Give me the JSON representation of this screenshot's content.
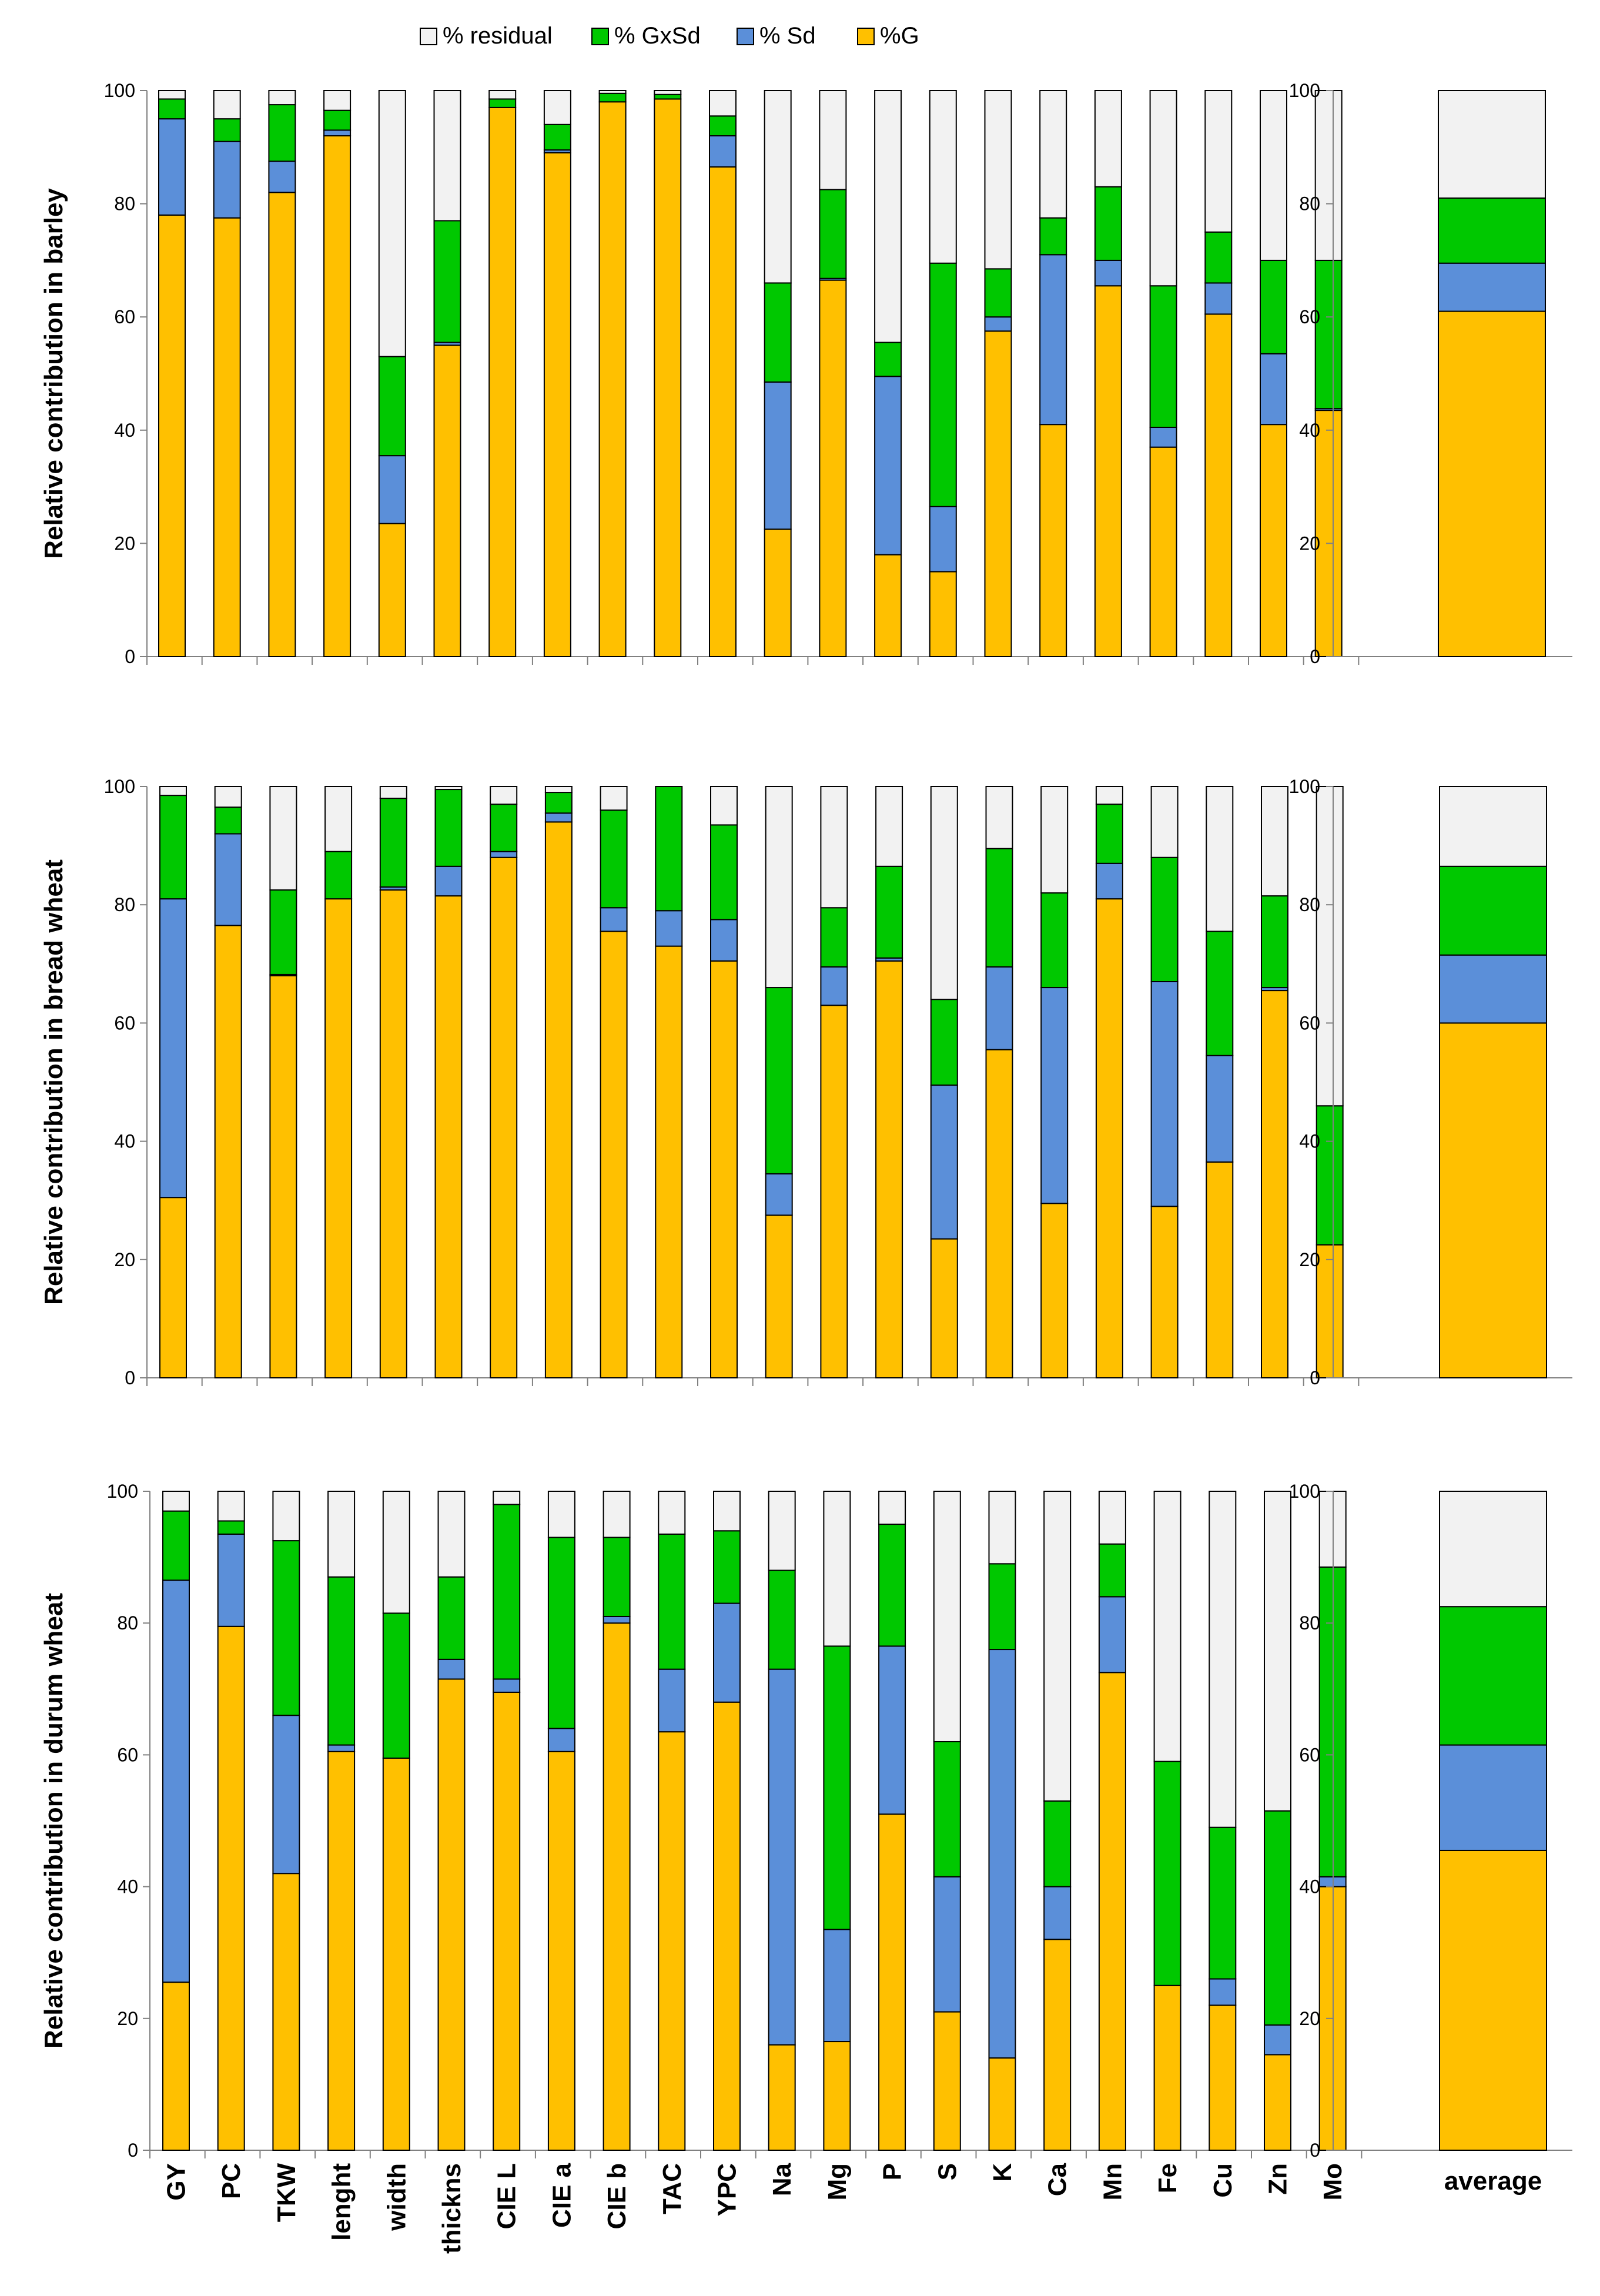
{
  "legend": [
    {
      "key": "residual",
      "label": "% residual",
      "color": "#F2F2F2"
    },
    {
      "key": "gxsd",
      "label": "% GxSd",
      "color": "#00C800"
    },
    {
      "key": "sd",
      "label": "% Sd",
      "color": "#5B8FD9"
    },
    {
      "key": "g",
      "label": "%G",
      "color": "#FFC000"
    }
  ],
  "categories": [
    "GY",
    "PC",
    "TKW",
    "lenght",
    "width",
    "thickns",
    "CIE L",
    "CIE a",
    "CIE b",
    "TAC",
    "YPC",
    "Na",
    "Mg",
    "P",
    "S",
    "K",
    "Ca",
    "Mn",
    "Fe",
    "Cu",
    "Zn",
    "Mo"
  ],
  "average_label": "average",
  "y_ticks": [
    "0",
    "20",
    "40",
    "60",
    "80",
    "100"
  ],
  "chart_data": [
    {
      "type": "bar",
      "stacked": true,
      "title": "",
      "ylabel": "Relative contribution in barley",
      "ylim": [
        0,
        100
      ],
      "categories": [
        "GY",
        "PC",
        "TKW",
        "lenght",
        "width",
        "thickns",
        "CIE L",
        "CIE a",
        "CIE b",
        "TAC",
        "YPC",
        "Na",
        "Mg",
        "P",
        "S",
        "K",
        "Ca",
        "Mn",
        "Fe",
        "Cu",
        "Zn",
        "Mo"
      ],
      "series": [
        {
          "name": "%G",
          "values": [
            78,
            77.5,
            82,
            92,
            23.5,
            55,
            97,
            89,
            98,
            98.5,
            86.5,
            22.5,
            66.5,
            18,
            15,
            57.5,
            41,
            65.5,
            37,
            60.5,
            41,
            43.5
          ]
        },
        {
          "name": "% Sd",
          "values": [
            17,
            13.5,
            5.5,
            1,
            12,
            0.5,
            0,
            0.5,
            0,
            0,
            5.5,
            26,
            0.3,
            31.5,
            11.5,
            2.5,
            30,
            4.5,
            3.5,
            5.5,
            12.5,
            0.3
          ]
        },
        {
          "name": "% GxSd",
          "values": [
            3.5,
            4,
            10,
            3.5,
            17.5,
            21.5,
            1.5,
            4.5,
            1.5,
            0.8,
            3.5,
            17.5,
            15.7,
            6,
            43,
            8.5,
            6.5,
            13,
            25,
            9,
            16.5,
            26.2
          ]
        },
        {
          "name": "% residual",
          "values": [
            1.5,
            5,
            2.5,
            3.5,
            47,
            23,
            1.5,
            6,
            0.5,
            0.7,
            4.5,
            34,
            17.5,
            44.5,
            30.5,
            31.5,
            22.5,
            17,
            34.5,
            25,
            30,
            30
          ]
        }
      ],
      "average": {
        "%G": 61,
        "% Sd": 8.5,
        "% GxSd": 11.5,
        "% residual": 19
      }
    },
    {
      "type": "bar",
      "stacked": true,
      "title": "",
      "ylabel": "Relative contribution in bread wheat",
      "ylim": [
        0,
        100
      ],
      "categories": [
        "GY",
        "PC",
        "TKW",
        "lenght",
        "width",
        "thickns",
        "CIE L",
        "CIE a",
        "CIE b",
        "TAC",
        "YPC",
        "Na",
        "Mg",
        "P",
        "S",
        "K",
        "Ca",
        "Mn",
        "Fe",
        "Cu",
        "Zn",
        "Mo"
      ],
      "series": [
        {
          "name": "%G",
          "values": [
            30.5,
            76.5,
            68,
            81,
            82.5,
            81.5,
            88,
            94,
            75.5,
            73,
            70.5,
            27.5,
            63,
            70.5,
            23.5,
            55.5,
            29.5,
            81,
            29,
            36.5,
            65.5,
            22.5
          ]
        },
        {
          "name": "% Sd",
          "values": [
            50.5,
            15.5,
            0.2,
            0,
            0.5,
            5,
            1,
            1.5,
            4,
            6,
            7,
            7,
            6.5,
            0.5,
            26,
            14,
            36.5,
            6,
            38,
            18,
            0.5,
            0
          ]
        },
        {
          "name": "% GxSd",
          "values": [
            17.5,
            4.5,
            14.3,
            8,
            15,
            13,
            8,
            3.5,
            16.5,
            21,
            16,
            31.5,
            10,
            15.5,
            14.5,
            20,
            16,
            10,
            21,
            21,
            15.5,
            23.5
          ]
        },
        {
          "name": "% residual",
          "values": [
            1.5,
            3.5,
            17.5,
            11,
            2,
            0.5,
            3,
            1,
            4,
            0,
            6.5,
            34,
            20.5,
            13.5,
            36,
            10.5,
            18,
            3,
            12,
            24.5,
            18.5,
            54
          ]
        }
      ],
      "average": {
        "%G": 60,
        "% Sd": 11.5,
        "% GxSd": 15,
        "% residual": 13.5
      }
    },
    {
      "type": "bar",
      "stacked": true,
      "title": "",
      "ylabel": "Relative contribution in durum wheat",
      "ylim": [
        0,
        100
      ],
      "categories": [
        "GY",
        "PC",
        "TKW",
        "lenght",
        "width",
        "thickns",
        "CIE L",
        "CIE a",
        "CIE b",
        "TAC",
        "YPC",
        "Na",
        "Mg",
        "P",
        "S",
        "K",
        "Ca",
        "Mn",
        "Fe",
        "Cu",
        "Zn",
        "Mo"
      ],
      "series": [
        {
          "name": "%G",
          "values": [
            25.5,
            79.5,
            42,
            60.5,
            59.5,
            71.5,
            69.5,
            60.5,
            80,
            63.5,
            68,
            16,
            16.5,
            51,
            21,
            14,
            32,
            72.5,
            25,
            22,
            14.5,
            40
          ]
        },
        {
          "name": "% Sd",
          "values": [
            61,
            14,
            24,
            1,
            0,
            3,
            2,
            3.5,
            1,
            9.5,
            15,
            57,
            17,
            25.5,
            20.5,
            62,
            8,
            11.5,
            0,
            4,
            4.5,
            1.5
          ]
        },
        {
          "name": "% GxSd",
          "values": [
            10.5,
            2,
            26.5,
            25.5,
            22,
            12.5,
            26.5,
            29,
            12,
            20.5,
            11,
            15,
            43,
            18.5,
            20.5,
            13,
            13,
            8,
            34,
            23,
            32.5,
            47
          ]
        },
        {
          "name": "% residual",
          "values": [
            3,
            4.5,
            7.5,
            13,
            18.5,
            13,
            2,
            7,
            7,
            6.5,
            6,
            12,
            23.5,
            5,
            38,
            11,
            47,
            8,
            41,
            51,
            48.5,
            11.5
          ]
        }
      ],
      "average": {
        "%G": 45.5,
        "% Sd": 16,
        "% GxSd": 21,
        "% residual": 17.5
      }
    }
  ]
}
